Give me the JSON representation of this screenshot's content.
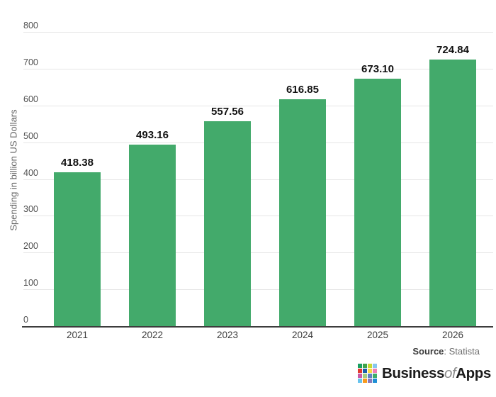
{
  "chart_data": {
    "type": "bar",
    "categories": [
      "2021",
      "2022",
      "2023",
      "2024",
      "2025",
      "2026"
    ],
    "values": [
      418.38,
      493.16,
      557.56,
      616.85,
      673.1,
      724.84
    ],
    "value_labels": [
      "418.38",
      "493.16",
      "557.56",
      "616.85",
      "673.10",
      "724.84"
    ],
    "title": "",
    "xlabel": "",
    "ylabel": "Spending in billion US Dollars",
    "ylim": [
      0,
      800
    ],
    "yticks": [
      0,
      100,
      200,
      300,
      400,
      500,
      600,
      700,
      800
    ],
    "grid": "horizontal",
    "legend": "none",
    "bar_color": "#43aa6b"
  },
  "colors": {
    "background": "#ffffff",
    "bar": "#43aa6b",
    "gridline": "#e6e6e6",
    "axis_line": "#3d3d3d",
    "tick_text": "#4f4f4f",
    "value_text": "#111111",
    "ylabel_text": "#666666"
  },
  "source": {
    "label": "Source",
    "separator": ": ",
    "value": "Statista"
  },
  "logo": {
    "part1": "Business",
    "part2": "of",
    "part3": "Apps",
    "grid_colors": [
      "#179f60",
      "#3fa34a",
      "#c8d82f",
      "#86c7ef",
      "#e23a2e",
      "#1c5ead",
      "#f8d943",
      "#f27fb5",
      "#cb58a4",
      "#a3cd80",
      "#6181c1",
      "#3ead69",
      "#67c3ee",
      "#f8991d",
      "#8b79b9",
      "#1e8fd5"
    ]
  }
}
